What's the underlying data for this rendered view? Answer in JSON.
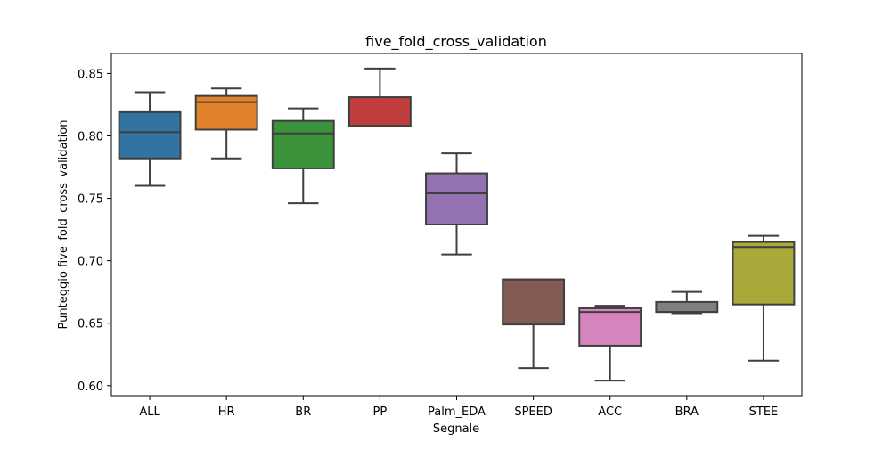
{
  "chart_data": {
    "type": "box",
    "title": "five_fold_cross_validation",
    "xlabel": "Segnale",
    "ylabel": "Punteggio five_fold_cross_validation",
    "ylim": [
      0.592,
      0.866
    ],
    "yticks": [
      0.6,
      0.65,
      0.7,
      0.75,
      0.8,
      0.85
    ],
    "ytick_labels": [
      "0.60",
      "0.65",
      "0.70",
      "0.75",
      "0.80",
      "0.85"
    ],
    "grid": false,
    "categories": [
      "ALL",
      "HR",
      "BR",
      "PP",
      "Palm_EDA",
      "SPEED",
      "ACC",
      "BRA",
      "STEE"
    ],
    "boxes": [
      {
        "category": "ALL",
        "whisker_low": 0.76,
        "q1": 0.782,
        "median": 0.803,
        "q3": 0.819,
        "whisker_high": 0.835,
        "color": "#3274a1"
      },
      {
        "category": "HR",
        "whisker_low": 0.782,
        "q1": 0.805,
        "median": 0.827,
        "q3": 0.832,
        "whisker_high": 0.838,
        "color": "#e1812c"
      },
      {
        "category": "BR",
        "whisker_low": 0.746,
        "q1": 0.774,
        "median": 0.802,
        "q3": 0.812,
        "whisker_high": 0.822,
        "color": "#3a923a"
      },
      {
        "category": "PP",
        "whisker_low": 0.808,
        "q1": 0.808,
        "median": 0.808,
        "q3": 0.831,
        "whisker_high": 0.854,
        "color": "#c03d3e"
      },
      {
        "category": "Palm_EDA",
        "whisker_low": 0.705,
        "q1": 0.729,
        "median": 0.754,
        "q3": 0.77,
        "whisker_high": 0.786,
        "color": "#9372b2"
      },
      {
        "category": "SPEED",
        "whisker_low": 0.614,
        "q1": 0.649,
        "median": 0.685,
        "q3": 0.685,
        "whisker_high": 0.685,
        "color": "#845b53"
      },
      {
        "category": "ACC",
        "whisker_low": 0.604,
        "q1": 0.632,
        "median": 0.659,
        "q3": 0.662,
        "whisker_high": 0.664,
        "color": "#d684bd"
      },
      {
        "category": "BRA",
        "whisker_low": 0.658,
        "q1": 0.659,
        "median": 0.659,
        "q3": 0.667,
        "whisker_high": 0.675,
        "color": "#7f7f7f"
      },
      {
        "category": "STEE",
        "whisker_low": 0.62,
        "q1": 0.665,
        "median": 0.711,
        "q3": 0.715,
        "whisker_high": 0.72,
        "color": "#a9a93a"
      }
    ]
  }
}
